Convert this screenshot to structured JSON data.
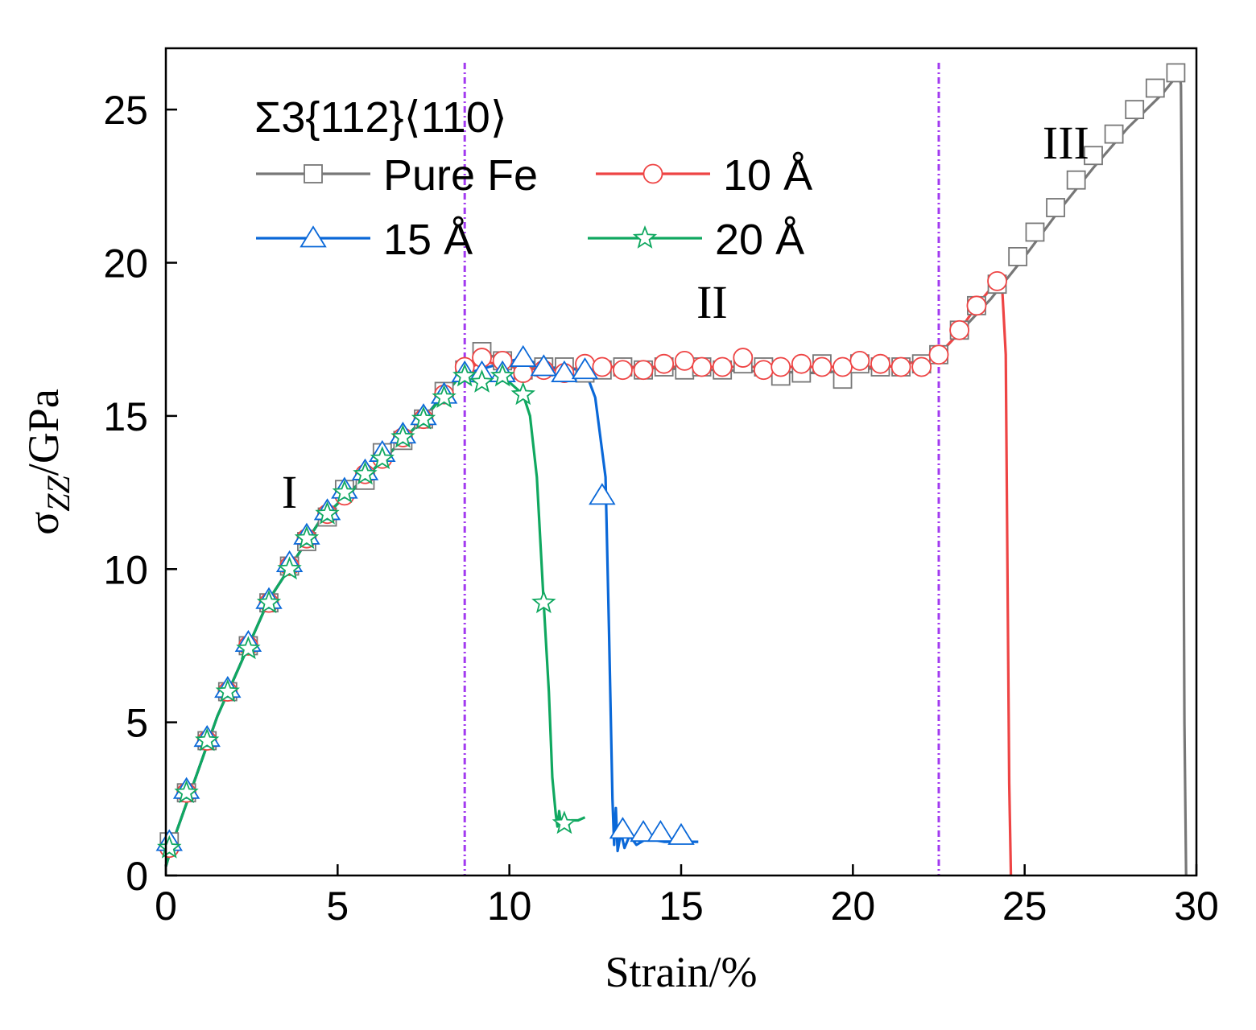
{
  "chart_data": {
    "type": "line",
    "title": "",
    "legend_title": "Σ3{112}⟨110⟩",
    "xlabel": "Strain/%",
    "ylabel_main": "σ",
    "ylabel_sub": "ZZ",
    "ylabel_unit": "/GPa",
    "xlim": [
      0,
      30
    ],
    "ylim": [
      0,
      27
    ],
    "xticks": [
      0,
      5,
      10,
      15,
      20,
      25,
      30
    ],
    "yticks": [
      0,
      5,
      10,
      15,
      20,
      25
    ],
    "xtick_labels": [
      "0",
      "5",
      "10",
      "15",
      "20",
      "25",
      "30"
    ],
    "ytick_labels": [
      "0",
      "5",
      "10",
      "15",
      "20",
      "25"
    ],
    "legend_position": "top-left",
    "grid": false,
    "vlines": [
      {
        "x": 8.7,
        "color": "#a23af0"
      },
      {
        "x": 22.5,
        "color": "#a23af0"
      }
    ],
    "annotations": [
      {
        "text": "I",
        "x": 3.6,
        "y": 12.0
      },
      {
        "text": "II",
        "x": 15.9,
        "y": 18.2
      },
      {
        "text": "III",
        "x": 26.2,
        "y": 23.4
      }
    ],
    "series": [
      {
        "name": "Pure Fe",
        "color": "#777777",
        "marker": "square",
        "line": [
          [
            0,
            0.3
          ],
          [
            0.3,
            1.4
          ],
          [
            1.5,
            5.2
          ],
          [
            3,
            9.0
          ],
          [
            4.5,
            11.6
          ],
          [
            6,
            13.2
          ],
          [
            7.5,
            14.9
          ],
          [
            8.5,
            16.3
          ],
          [
            9.2,
            17.1
          ],
          [
            10,
            16.7
          ],
          [
            11,
            16.5
          ],
          [
            13,
            16.6
          ],
          [
            16,
            16.5
          ],
          [
            19,
            16.4
          ],
          [
            21,
            16.6
          ],
          [
            22,
            16.8
          ],
          [
            22.5,
            17.0
          ],
          [
            23,
            17.6
          ],
          [
            24,
            18.8
          ],
          [
            25,
            20.2
          ],
          [
            26,
            21.7
          ],
          [
            27,
            23.1
          ],
          [
            28,
            24.4
          ],
          [
            29,
            25.5
          ],
          [
            29.5,
            26.2
          ],
          [
            29.55,
            25.8
          ],
          [
            29.6,
            18
          ],
          [
            29.65,
            5
          ],
          [
            29.7,
            0
          ]
        ],
        "markers": [
          [
            0.1,
            1.1
          ],
          [
            0.6,
            2.7
          ],
          [
            1.2,
            4.4
          ],
          [
            1.8,
            6.0
          ],
          [
            2.4,
            7.5
          ],
          [
            3.0,
            8.9
          ],
          [
            3.6,
            10.1
          ],
          [
            4.1,
            10.9
          ],
          [
            4.7,
            11.7
          ],
          [
            5.2,
            12.6
          ],
          [
            5.8,
            12.9
          ],
          [
            6.3,
            13.8
          ],
          [
            6.9,
            14.2
          ],
          [
            7.5,
            14.9
          ],
          [
            8.1,
            15.8
          ],
          [
            8.7,
            16.5
          ],
          [
            9.2,
            17.1
          ],
          [
            9.8,
            16.8
          ],
          [
            10.4,
            16.5
          ],
          [
            11.0,
            16.6
          ],
          [
            11.6,
            16.6
          ],
          [
            12.2,
            16.4
          ],
          [
            12.7,
            16.5
          ],
          [
            13.3,
            16.6
          ],
          [
            13.9,
            16.5
          ],
          [
            14.5,
            16.6
          ],
          [
            15.1,
            16.5
          ],
          [
            15.6,
            16.6
          ],
          [
            16.2,
            16.5
          ],
          [
            16.8,
            16.7
          ],
          [
            17.4,
            16.6
          ],
          [
            17.9,
            16.3
          ],
          [
            18.5,
            16.4
          ],
          [
            19.1,
            16.7
          ],
          [
            19.7,
            16.2
          ],
          [
            20.2,
            16.7
          ],
          [
            20.8,
            16.6
          ],
          [
            21.4,
            16.6
          ],
          [
            22.0,
            16.7
          ],
          [
            22.5,
            17.0
          ],
          [
            23.1,
            17.8
          ],
          [
            23.6,
            18.6
          ],
          [
            24.2,
            19.3
          ],
          [
            24.8,
            20.2
          ],
          [
            25.3,
            21.0
          ],
          [
            25.9,
            21.8
          ],
          [
            26.5,
            22.7
          ],
          [
            27.0,
            23.5
          ],
          [
            27.6,
            24.2
          ],
          [
            28.2,
            25.0
          ],
          [
            28.8,
            25.7
          ],
          [
            29.4,
            26.2
          ]
        ]
      },
      {
        "name": "10 Å",
        "color": "#ee4444",
        "marker": "circle",
        "line": [
          [
            0,
            0.3
          ],
          [
            0.3,
            1.4
          ],
          [
            1.5,
            5.2
          ],
          [
            3,
            9.0
          ],
          [
            4.5,
            11.6
          ],
          [
            6,
            13.2
          ],
          [
            7.5,
            14.9
          ],
          [
            8.5,
            16.3
          ],
          [
            9.2,
            16.8
          ],
          [
            10,
            16.6
          ],
          [
            11,
            16.5
          ],
          [
            13,
            16.6
          ],
          [
            16,
            16.6
          ],
          [
            19,
            16.6
          ],
          [
            21,
            16.6
          ],
          [
            22,
            16.8
          ],
          [
            22.5,
            17.0
          ],
          [
            23,
            17.6
          ],
          [
            23.6,
            18.6
          ],
          [
            24.2,
            19.4
          ],
          [
            24.35,
            19.1
          ],
          [
            24.45,
            17
          ],
          [
            24.5,
            10
          ],
          [
            24.55,
            3
          ],
          [
            24.6,
            0
          ]
        ],
        "markers": [
          [
            0.1,
            0.9
          ],
          [
            0.6,
            2.7
          ],
          [
            1.2,
            4.4
          ],
          [
            1.8,
            6.0
          ],
          [
            2.4,
            7.5
          ],
          [
            3.0,
            8.9
          ],
          [
            3.6,
            10.1
          ],
          [
            4.1,
            11.0
          ],
          [
            4.7,
            11.8
          ],
          [
            5.2,
            12.4
          ],
          [
            5.8,
            13.1
          ],
          [
            6.3,
            13.6
          ],
          [
            6.9,
            14.3
          ],
          [
            7.5,
            14.9
          ],
          [
            8.1,
            15.7
          ],
          [
            8.7,
            16.6
          ],
          [
            9.2,
            16.9
          ],
          [
            9.8,
            16.8
          ],
          [
            10.4,
            16.4
          ],
          [
            11.0,
            16.5
          ],
          [
            11.6,
            16.4
          ],
          [
            12.2,
            16.7
          ],
          [
            12.7,
            16.6
          ],
          [
            13.3,
            16.5
          ],
          [
            13.9,
            16.5
          ],
          [
            14.5,
            16.7
          ],
          [
            15.1,
            16.8
          ],
          [
            15.6,
            16.6
          ],
          [
            16.2,
            16.6
          ],
          [
            16.8,
            16.9
          ],
          [
            17.4,
            16.5
          ],
          [
            17.9,
            16.6
          ],
          [
            18.5,
            16.7
          ],
          [
            19.1,
            16.6
          ],
          [
            19.7,
            16.6
          ],
          [
            20.2,
            16.8
          ],
          [
            20.8,
            16.7
          ],
          [
            21.4,
            16.6
          ],
          [
            22.0,
            16.6
          ],
          [
            22.5,
            17.0
          ],
          [
            23.1,
            17.8
          ],
          [
            23.6,
            18.6
          ],
          [
            24.2,
            19.4
          ]
        ]
      },
      {
        "name": "15 Å",
        "color": "#0a68d8",
        "marker": "triangle",
        "line": [
          [
            0,
            0.3
          ],
          [
            0.3,
            1.4
          ],
          [
            1.5,
            5.2
          ],
          [
            3,
            9.0
          ],
          [
            4.5,
            11.6
          ],
          [
            6,
            13.2
          ],
          [
            7.5,
            14.9
          ],
          [
            8.5,
            16.3
          ],
          [
            9.4,
            16.6
          ],
          [
            10.4,
            16.9
          ],
          [
            11,
            16.6
          ],
          [
            12.2,
            16.5
          ],
          [
            12.5,
            15.6
          ],
          [
            12.8,
            13.0
          ],
          [
            12.9,
            8
          ],
          [
            13.0,
            2.5
          ],
          [
            13.05,
            1.0
          ],
          [
            13.1,
            2.2
          ],
          [
            13.15,
            0.8
          ],
          [
            13.25,
            1.4
          ],
          [
            13.35,
            0.9
          ],
          [
            13.5,
            1.3
          ],
          [
            13.7,
            1.0
          ],
          [
            14.0,
            1.2
          ],
          [
            14.5,
            1.1
          ],
          [
            15.0,
            1.1
          ],
          [
            15.5,
            1.1
          ]
        ],
        "markers": [
          [
            0.1,
            1.1
          ],
          [
            0.6,
            2.8
          ],
          [
            1.2,
            4.5
          ],
          [
            1.8,
            6.1
          ],
          [
            2.4,
            7.6
          ],
          [
            3.0,
            9.0
          ],
          [
            3.6,
            10.2
          ],
          [
            4.1,
            11.1
          ],
          [
            4.7,
            11.9
          ],
          [
            5.2,
            12.6
          ],
          [
            5.8,
            13.2
          ],
          [
            6.3,
            13.8
          ],
          [
            6.9,
            14.4
          ],
          [
            7.5,
            15.0
          ],
          [
            8.1,
            15.7
          ],
          [
            8.7,
            16.4
          ],
          [
            9.2,
            16.4
          ],
          [
            9.8,
            16.4
          ],
          [
            10.4,
            16.9
          ],
          [
            11.0,
            16.6
          ],
          [
            11.6,
            16.4
          ],
          [
            12.2,
            16.5
          ],
          [
            12.7,
            12.4
          ],
          [
            13.3,
            1.5
          ],
          [
            13.9,
            1.4
          ],
          [
            14.4,
            1.4
          ],
          [
            15.0,
            1.3
          ]
        ]
      },
      {
        "name": "20 Å",
        "color": "#10a860",
        "marker": "star",
        "line": [
          [
            0,
            0.3
          ],
          [
            0.3,
            1.4
          ],
          [
            1.5,
            5.2
          ],
          [
            3,
            9.0
          ],
          [
            4.5,
            11.6
          ],
          [
            6,
            13.2
          ],
          [
            7.5,
            14.9
          ],
          [
            8.5,
            16.2
          ],
          [
            9.2,
            16.1
          ],
          [
            9.8,
            16.3
          ],
          [
            10.4,
            15.7
          ],
          [
            10.6,
            15.0
          ],
          [
            10.8,
            13.0
          ],
          [
            11.0,
            8.9
          ],
          [
            11.15,
            6
          ],
          [
            11.25,
            3.2
          ],
          [
            11.35,
            2.0
          ],
          [
            11.4,
            1.6
          ],
          [
            11.45,
            2.1
          ],
          [
            11.5,
            1.7
          ],
          [
            11.6,
            1.9
          ],
          [
            11.7,
            1.6
          ],
          [
            11.8,
            1.8
          ],
          [
            12.0,
            1.8
          ],
          [
            12.2,
            1.9
          ]
        ],
        "markers": [
          [
            0.1,
            0.9
          ],
          [
            0.6,
            2.7
          ],
          [
            1.2,
            4.4
          ],
          [
            1.8,
            6.0
          ],
          [
            2.4,
            7.4
          ],
          [
            3.0,
            8.9
          ],
          [
            3.6,
            10.0
          ],
          [
            4.1,
            11.0
          ],
          [
            4.7,
            11.8
          ],
          [
            5.2,
            12.5
          ],
          [
            5.8,
            13.1
          ],
          [
            6.3,
            13.6
          ],
          [
            6.9,
            14.3
          ],
          [
            7.5,
            14.9
          ],
          [
            8.1,
            15.6
          ],
          [
            8.7,
            16.3
          ],
          [
            9.2,
            16.1
          ],
          [
            9.8,
            16.3
          ],
          [
            10.4,
            15.7
          ],
          [
            11.0,
            8.9
          ],
          [
            11.6,
            1.7
          ]
        ]
      }
    ]
  }
}
